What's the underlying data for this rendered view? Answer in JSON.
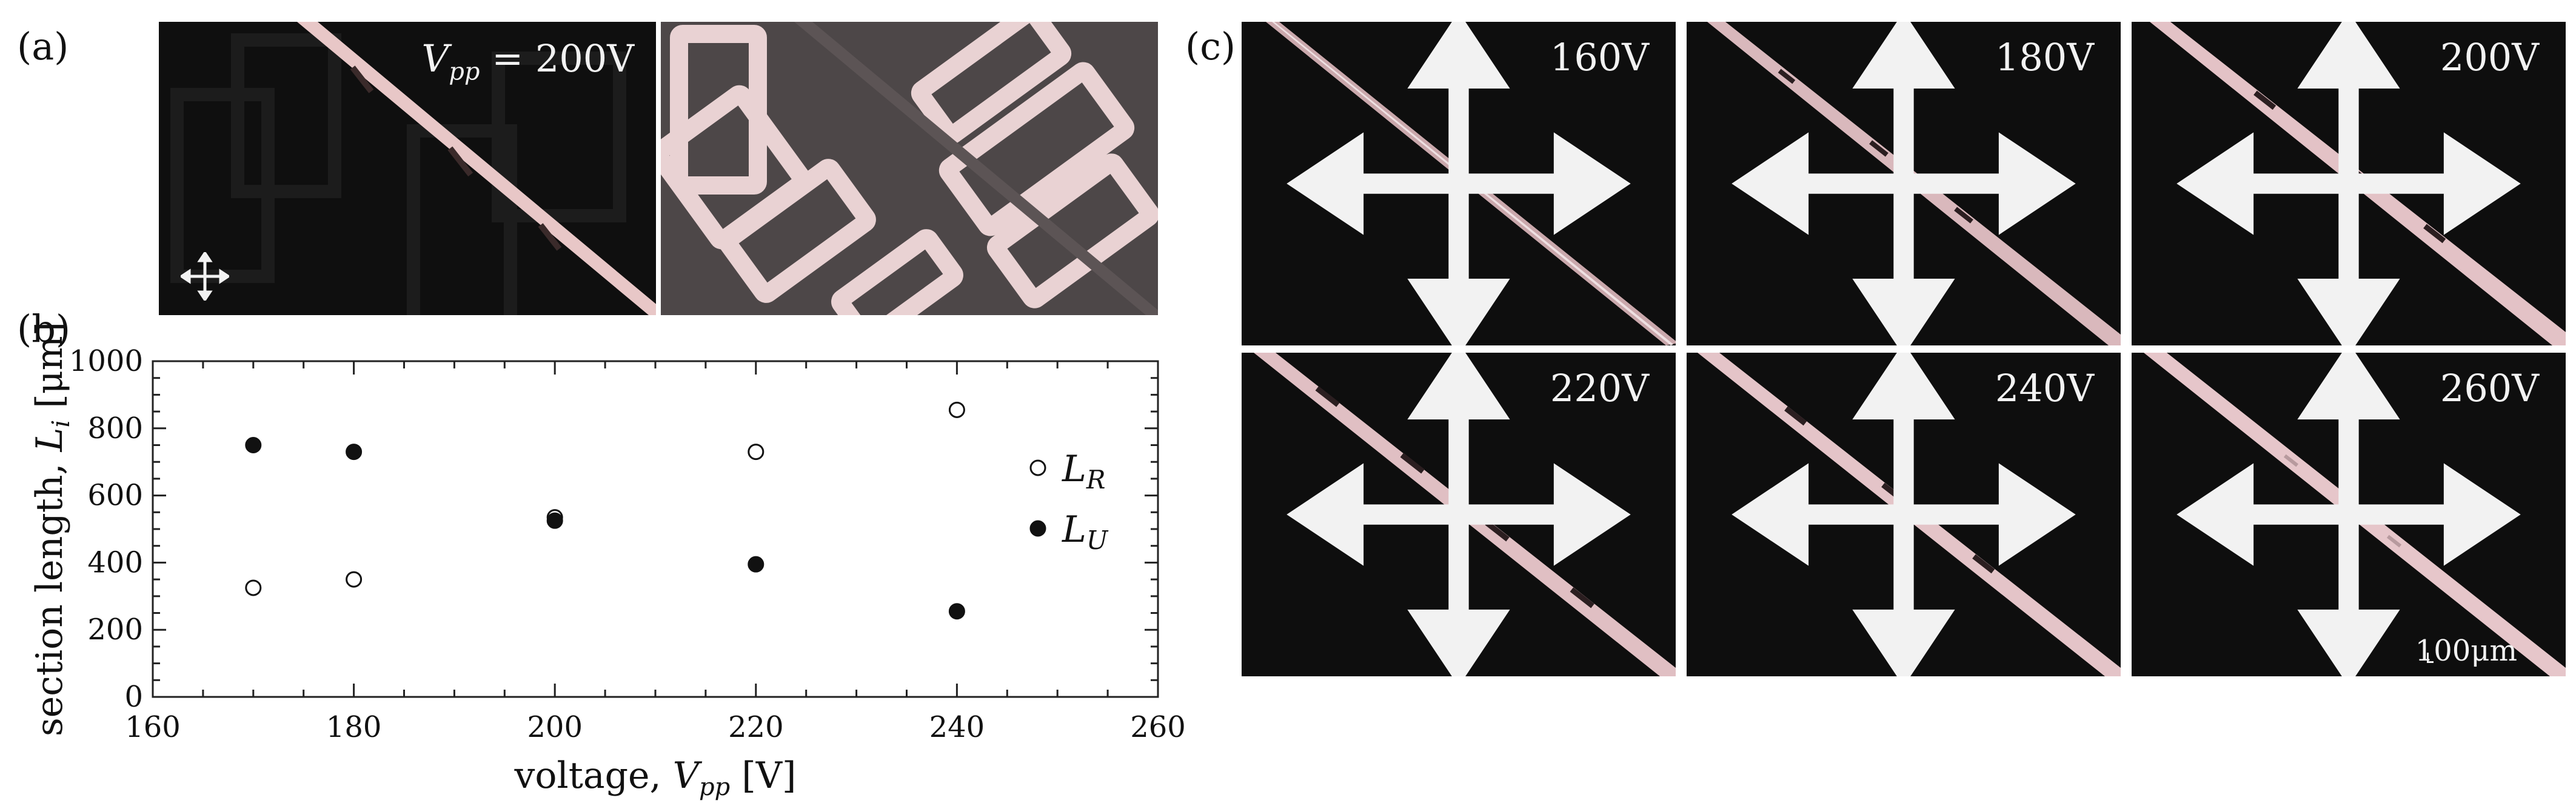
{
  "panels": {
    "a": {
      "letter": "(a)",
      "voltage_label_var": "V",
      "voltage_label_sub": "pp",
      "voltage_label_value": " = 200V"
    },
    "b": {
      "letter": "(b)"
    },
    "c": {
      "letter": "(c)",
      "tiles": [
        {
          "label": "160V"
        },
        {
          "label": "180V"
        },
        {
          "label": "200V"
        },
        {
          "label": "220V"
        },
        {
          "label": "240V"
        },
        {
          "label": "260V"
        }
      ],
      "scale_bar": "100μm"
    }
  },
  "chart_data": {
    "type": "scatter",
    "xlabel_main": "voltage, ",
    "xlabel_var": "V",
    "xlabel_sub": "pp",
    "xlabel_unit": " [V]",
    "ylabel_main": "section length, ",
    "ylabel_var": "L",
    "ylabel_sub": "i",
    "ylabel_unit": " [μm]",
    "xlim": [
      160,
      260
    ],
    "ylim": [
      0,
      1000
    ],
    "xticks": [
      160,
      180,
      200,
      220,
      240,
      260
    ],
    "yticks": [
      0,
      200,
      400,
      600,
      800,
      1000
    ],
    "legend_placement": "right",
    "series": [
      {
        "name_var": "L",
        "name_sub": "R",
        "marker": "open-circle",
        "x": [
          170,
          180,
          200,
          220,
          240
        ],
        "y": [
          325,
          350,
          535,
          730,
          855
        ]
      },
      {
        "name_var": "L",
        "name_sub": "U",
        "marker": "filled-circle",
        "x": [
          170,
          180,
          200,
          220,
          240
        ],
        "y": [
          750,
          730,
          525,
          395,
          255
        ]
      }
    ]
  }
}
